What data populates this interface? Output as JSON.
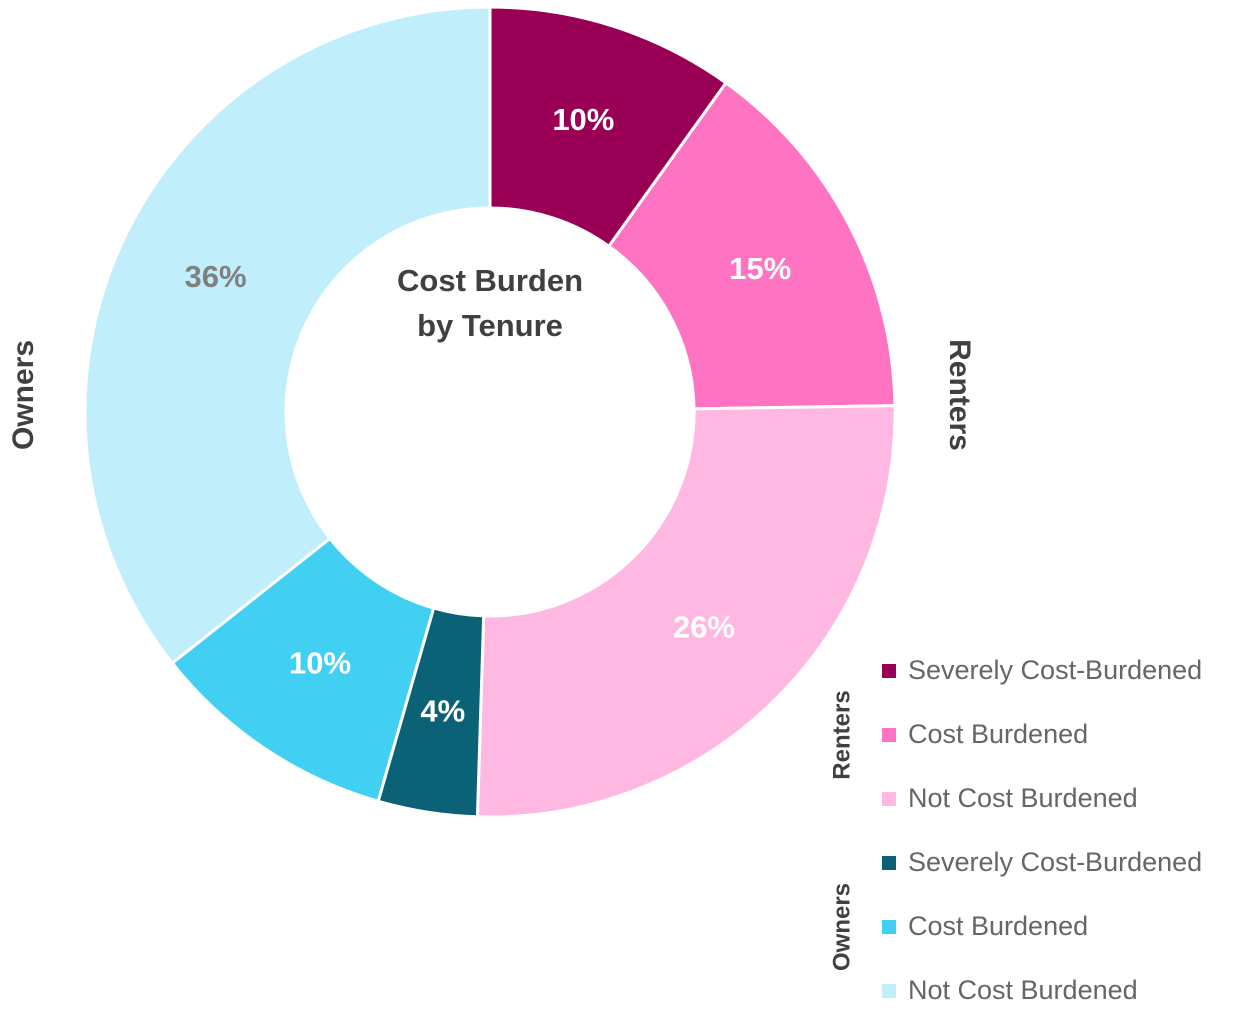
{
  "chart_data": {
    "type": "donut",
    "title": "Cost Burden by Tenure",
    "groups": [
      {
        "name": "Renters",
        "categories": [
          "Severely Cost-Burdened",
          "Cost Burdened",
          "Not Cost Burdened"
        ],
        "colors": [
          "#990055",
          "#ff73c3",
          "#ffb8e1"
        ],
        "label_colors": [
          "#ffffff",
          "#ffffff",
          "#ffffff"
        ],
        "values": [
          10,
          15,
          26
        ],
        "value_labels": [
          "10%",
          "15%",
          "26%"
        ]
      },
      {
        "name": "Owners",
        "categories": [
          "Severely Cost-Burdened",
          "Cost Burdened",
          "Not Cost Burdened"
        ],
        "colors": [
          "#0b6176",
          "#42d0f2",
          "#c0eefa"
        ],
        "label_colors": [
          "#ffffff",
          "#ffffff",
          "#808080"
        ],
        "values": [
          4,
          10,
          36
        ],
        "value_labels": [
          "4%",
          "10%",
          "36%"
        ]
      }
    ]
  }
}
